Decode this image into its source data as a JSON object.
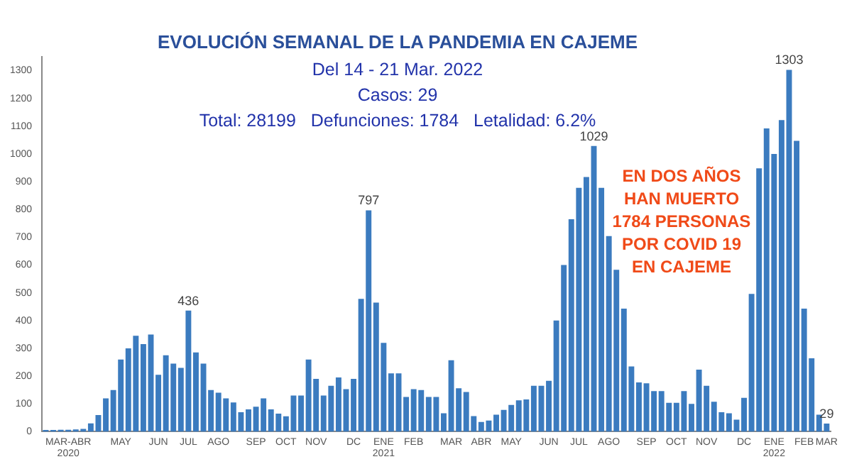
{
  "chart_data": {
    "type": "bar",
    "title": "EVOLUCIÓN SEMANAL DE LA PANDEMIA EN CAJEME",
    "subtitle": "Del 14 - 21 Mar. 2022\nCasos: 29\nTotal: 28199   Defunciones: 1784   Letalidad: 6.2%",
    "categories": [
      null,
      null,
      null,
      "MAR-ABR\n2020",
      null,
      null,
      null,
      null,
      null,
      null,
      "MAY",
      null,
      null,
      null,
      null,
      "JUN",
      null,
      null,
      null,
      "JUL",
      null,
      null,
      null,
      "AGO",
      null,
      null,
      null,
      null,
      "SEP",
      null,
      null,
      null,
      "OCT",
      null,
      null,
      null,
      "NOV",
      null,
      null,
      null,
      null,
      "DC",
      null,
      null,
      null,
      "ENE\n2021",
      null,
      null,
      null,
      "FEB",
      null,
      null,
      null,
      null,
      "MAR",
      null,
      null,
      null,
      "ABR",
      null,
      null,
      null,
      "MAY",
      null,
      null,
      null,
      null,
      "JUN",
      null,
      null,
      null,
      "JUL",
      null,
      null,
      null,
      "AGO",
      null,
      null,
      null,
      null,
      "SEP",
      null,
      null,
      null,
      "OCT",
      null,
      null,
      null,
      "NOV",
      null,
      null,
      null,
      null,
      "DC",
      null,
      null,
      null,
      "ENE\n2022",
      null,
      null,
      null,
      "FEB",
      null,
      null,
      "MAR"
    ],
    "values": [
      6,
      6,
      7,
      7,
      8,
      10,
      30,
      60,
      120,
      150,
      260,
      300,
      345,
      315,
      350,
      205,
      275,
      245,
      230,
      436,
      285,
      245,
      150,
      140,
      120,
      105,
      70,
      80,
      90,
      120,
      80,
      65,
      55,
      130,
      130,
      260,
      190,
      130,
      165,
      195,
      153,
      190,
      478,
      797,
      465,
      320,
      210,
      210,
      125,
      153,
      150,
      125,
      125,
      66,
      257,
      156,
      143,
      56,
      35,
      40,
      61,
      78,
      96,
      113,
      116,
      165,
      165,
      183,
      400,
      600,
      765,
      878,
      917,
      1029,
      878,
      704,
      583,
      443,
      235,
      177,
      174,
      146,
      146,
      104,
      104,
      146,
      100,
      223,
      165,
      108,
      70,
      66,
      43,
      122,
      496,
      948,
      1092,
      1000,
      1122,
      1303,
      1047,
      443,
      264,
      61,
      29
    ],
    "value_labels": [
      null,
      null,
      null,
      null,
      null,
      null,
      null,
      null,
      null,
      null,
      null,
      null,
      null,
      null,
      null,
      null,
      null,
      null,
      null,
      "436",
      null,
      null,
      null,
      null,
      null,
      null,
      null,
      null,
      null,
      null,
      null,
      null,
      null,
      null,
      null,
      null,
      null,
      null,
      null,
      null,
      null,
      null,
      null,
      "797",
      null,
      null,
      null,
      null,
      null,
      null,
      null,
      null,
      null,
      null,
      null,
      null,
      null,
      null,
      null,
      null,
      null,
      null,
      null,
      null,
      null,
      null,
      null,
      null,
      null,
      null,
      null,
      null,
      null,
      "1029",
      null,
      null,
      null,
      null,
      null,
      null,
      null,
      null,
      null,
      null,
      null,
      null,
      null,
      null,
      null,
      null,
      null,
      null,
      null,
      null,
      null,
      null,
      null,
      null,
      null,
      "1303",
      null,
      null,
      null,
      null,
      "29"
    ],
    "color": "#3b7bbf",
    "ylim": [
      0,
      1350
    ],
    "yticks": [
      0,
      100,
      200,
      300,
      400,
      500,
      600,
      700,
      800,
      900,
      1000,
      1100,
      1200,
      1300
    ],
    "grid": false,
    "legend": false,
    "annotations": [
      "EN DOS AÑOS\nHAN MUERTO\n1784 PERSONAS\nPOR COVID 19\nEN CAJEME"
    ]
  }
}
